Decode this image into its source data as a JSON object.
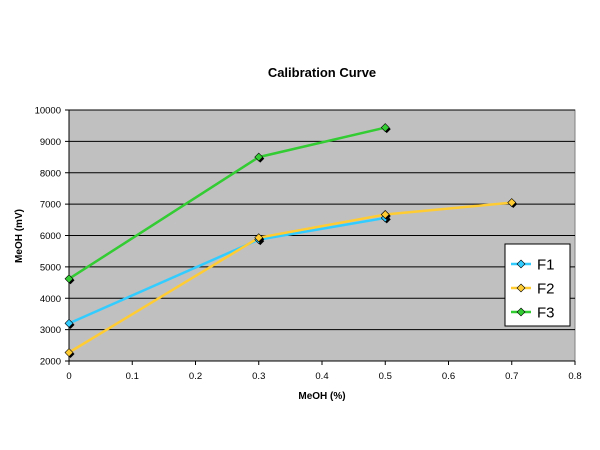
{
  "chart_data": {
    "type": "line",
    "title": "Calibration Curve",
    "xlabel": "MeOH (%)",
    "ylabel": "MeOH (mV)",
    "xlim": [
      0,
      0.8
    ],
    "ylim": [
      2000,
      10000
    ],
    "x_ticks": [
      "0",
      "0.1",
      "0.2",
      "0.3",
      "0.4",
      "0.5",
      "0.6",
      "0.7",
      "0.8"
    ],
    "y_ticks": [
      "2000",
      "3000",
      "4000",
      "5000",
      "6000",
      "7000",
      "8000",
      "9000",
      "10000"
    ],
    "grid": true,
    "legend_position": "right",
    "plot_background": "#c0c0c0",
    "series": [
      {
        "name": "F1",
        "color": "#33ccff",
        "x": [
          0,
          0.3,
          0.5
        ],
        "y": [
          3200,
          5870,
          6560
        ]
      },
      {
        "name": "F2",
        "color": "#ffcc33",
        "x": [
          0,
          0.3,
          0.5,
          0.7
        ],
        "y": [
          2270,
          5930,
          6670,
          7050
        ]
      },
      {
        "name": "F3",
        "color": "#33cc33",
        "x": [
          0,
          0.3,
          0.5
        ],
        "y": [
          4620,
          8500,
          9440
        ]
      }
    ]
  }
}
